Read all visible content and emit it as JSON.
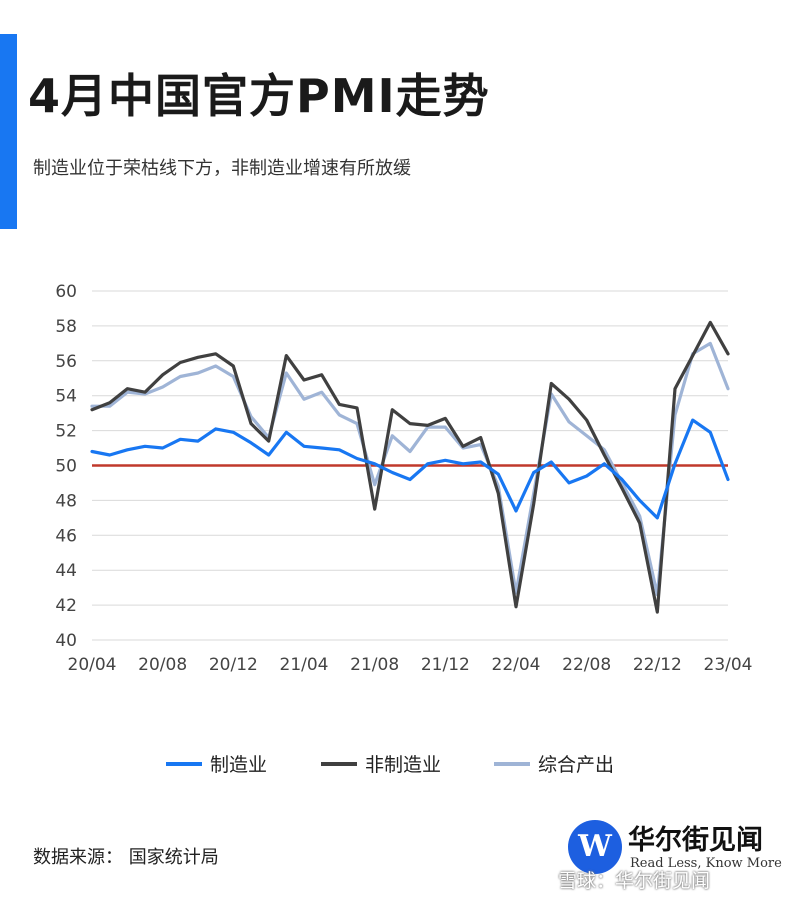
{
  "header": {
    "title": "4月中国官方PMI走势",
    "subtitle": "制造业位于荣枯线下方，非制造业增速有所放缓"
  },
  "colors": {
    "accent": "#1877f2",
    "threshold": "#c0392b",
    "grid": "#d9d9d9"
  },
  "chart_data": {
    "type": "line",
    "title": "4月中国官方PMI走势",
    "ylim": [
      40,
      60
    ],
    "yticks": [
      40,
      42,
      44,
      46,
      48,
      50,
      52,
      54,
      56,
      58,
      60
    ],
    "grid": true,
    "threshold": 50,
    "x_tick_labels": [
      "20/04",
      "20/08",
      "20/12",
      "21/04",
      "21/08",
      "21/12",
      "22/04",
      "22/08",
      "22/12",
      "23/04"
    ],
    "x": [
      "20/04",
      "20/05",
      "20/06",
      "20/07",
      "20/08",
      "20/09",
      "20/10",
      "20/11",
      "20/12",
      "21/01",
      "21/02",
      "21/03",
      "21/04",
      "21/05",
      "21/06",
      "21/07",
      "21/08",
      "21/09",
      "21/10",
      "21/11",
      "21/12",
      "22/01",
      "22/02",
      "22/03",
      "22/04",
      "22/05",
      "22/06",
      "22/07",
      "22/08",
      "22/09",
      "22/10",
      "22/11",
      "22/12",
      "23/01",
      "23/02",
      "23/03",
      "23/04"
    ],
    "series": [
      {
        "name": "制造业",
        "color": "#1877f2",
        "values": [
          50.8,
          50.6,
          50.9,
          51.1,
          51.0,
          51.5,
          51.4,
          52.1,
          51.9,
          51.3,
          50.6,
          51.9,
          51.1,
          51.0,
          50.9,
          50.4,
          50.1,
          49.6,
          49.2,
          50.1,
          50.3,
          50.1,
          50.2,
          49.5,
          47.4,
          49.6,
          50.2,
          49.0,
          49.4,
          50.1,
          49.2,
          48.0,
          47.0,
          50.1,
          52.6,
          51.9,
          49.2
        ]
      },
      {
        "name": "非制造业",
        "color": "#404040",
        "values": [
          53.2,
          53.6,
          54.4,
          54.2,
          55.2,
          55.9,
          56.2,
          56.4,
          55.7,
          52.4,
          51.4,
          56.3,
          54.9,
          55.2,
          53.5,
          53.3,
          47.5,
          53.2,
          52.4,
          52.3,
          52.7,
          51.1,
          51.6,
          48.4,
          41.9,
          47.8,
          54.7,
          53.8,
          52.6,
          50.6,
          48.7,
          46.7,
          41.6,
          54.4,
          56.3,
          58.2,
          56.4
        ]
      },
      {
        "name": "综合产出",
        "color": "#9fb4d6",
        "values": [
          53.4,
          53.4,
          54.2,
          54.1,
          54.5,
          55.1,
          55.3,
          55.7,
          55.1,
          52.8,
          51.6,
          55.3,
          53.8,
          54.2,
          52.9,
          52.4,
          48.9,
          51.7,
          50.8,
          52.2,
          52.2,
          51.0,
          51.2,
          48.8,
          42.7,
          48.4,
          54.1,
          52.5,
          51.7,
          50.9,
          49.0,
          47.1,
          42.6,
          52.9,
          56.4,
          57.0,
          54.4
        ]
      }
    ]
  },
  "legend": {
    "items": [
      "制造业",
      "非制造业",
      "综合产出"
    ]
  },
  "footer": {
    "source": "数据来源：  国家统计局",
    "logo_mark": "W",
    "logo_name": "华尔街见闻",
    "logo_slogan": "Read Less, Know More",
    "watermark": "雪球：华尔街见闻"
  }
}
